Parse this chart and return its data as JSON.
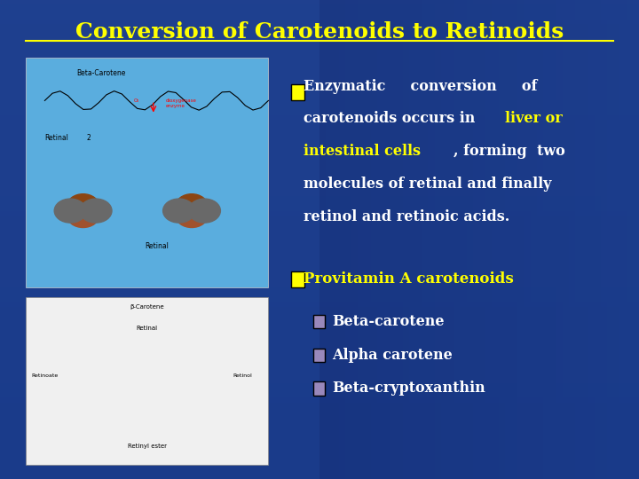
{
  "title": "Conversion of Carotenoids to Retinoids",
  "title_color": "#FFFF00",
  "title_fontsize": 18,
  "bg_color": "#1a3a8a",
  "bullet_color": "#FFFF00",
  "bullet_sub_color": "#9988bb",
  "text_color": "#FFFFFF",
  "highlight_color": "#FFFF00",
  "bullet2": "Provitamin A carotenoids",
  "subbullets": [
    "Beta-carotene",
    "Alpha carotene",
    "Beta-cryptoxanthin"
  ],
  "image1_bg": "#5aadde",
  "image2_bg": "#f0f0f0"
}
